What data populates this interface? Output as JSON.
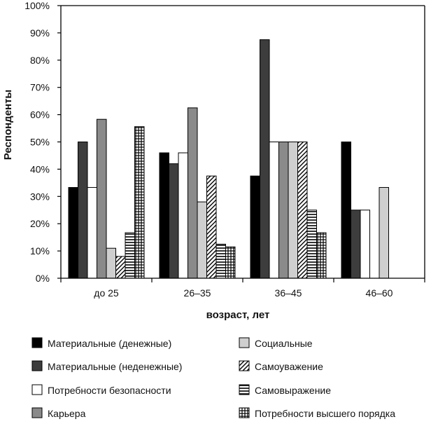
{
  "chart_data": {
    "type": "bar",
    "title": "",
    "xlabel": "возраст, лет",
    "ylabel": "Респонденты",
    "ylim": [
      0,
      100
    ],
    "y_ticks": [
      "0%",
      "10%",
      "20%",
      "30%",
      "40%",
      "50%",
      "60%",
      "70%",
      "80%",
      "90%",
      "100%"
    ],
    "categories": [
      "до 25",
      "26–35",
      "36–45",
      "46–60"
    ],
    "grid": false,
    "legend_position": "bottom",
    "series": [
      {
        "name": "Материальные (денежные)",
        "values": [
          33.3,
          46,
          37.5,
          50
        ],
        "pattern": "solid-black"
      },
      {
        "name": "Материальные (неденежные)",
        "values": [
          50,
          42,
          87.5,
          25
        ],
        "pattern": "dark-gray"
      },
      {
        "name": "Потребности безопасности",
        "values": [
          33.3,
          46,
          50,
          25
        ],
        "pattern": "white"
      },
      {
        "name": "Карьера",
        "values": [
          58.3,
          62.5,
          50,
          0
        ],
        "pattern": "mid-gray"
      },
      {
        "name": "Социальные",
        "values": [
          11,
          28,
          50,
          33.3
        ],
        "pattern": "light-gray"
      },
      {
        "name": "Самоуважение",
        "values": [
          8,
          37.5,
          50,
          0
        ],
        "pattern": "diagonal"
      },
      {
        "name": "Самовыражение",
        "values": [
          16.7,
          12.5,
          25,
          0
        ],
        "pattern": "horizontal"
      },
      {
        "name": "Потребности высшего порядка",
        "values": [
          55.6,
          11.5,
          16.7,
          0
        ],
        "pattern": "grid"
      }
    ]
  }
}
